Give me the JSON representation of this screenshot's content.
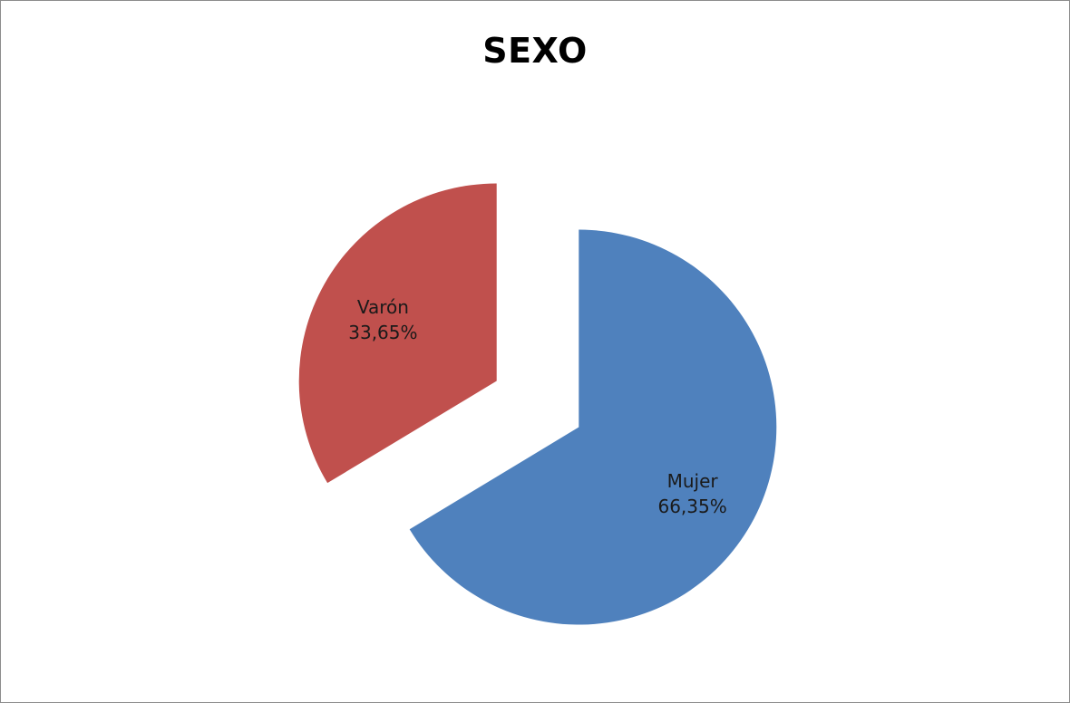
{
  "chart_data": {
    "type": "pie",
    "title": "SEXO",
    "slices": [
      {
        "label": "Mujer",
        "value": 66.35,
        "value_text": "66,35%",
        "color": "#4f81bd"
      },
      {
        "label": "Varón",
        "value": 33.65,
        "value_text": "33,65%",
        "color": "#c0504d"
      }
    ],
    "exploded": true,
    "legend": "none",
    "data_labels": "inside"
  }
}
